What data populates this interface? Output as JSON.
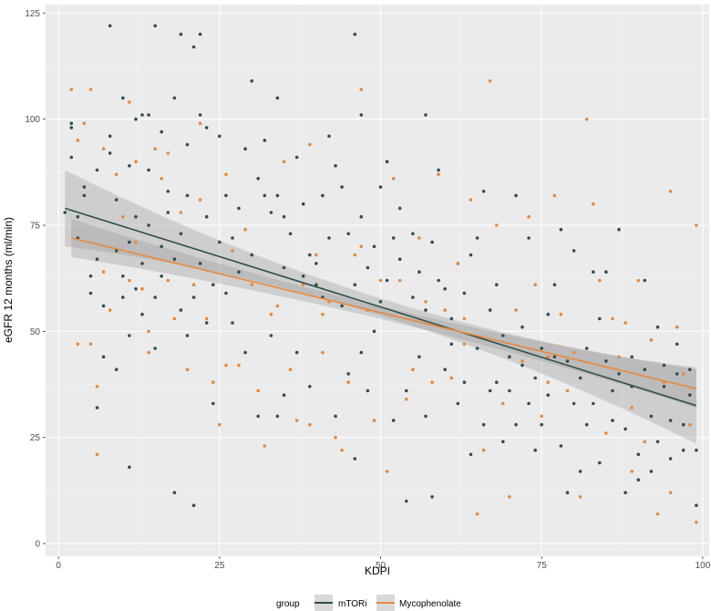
{
  "chart_data": {
    "type": "scatter",
    "xlabel": "KDPI",
    "ylabel": "eGFR 12 months (ml/min)",
    "xlim": [
      -2,
      101
    ],
    "ylim": [
      -3,
      127
    ],
    "x_ticks": [
      0,
      25,
      50,
      75,
      100
    ],
    "y_ticks": [
      0,
      25,
      50,
      75,
      100,
      125
    ],
    "grid": true,
    "legend": {
      "title": "group",
      "position": "bottom"
    },
    "colors": {
      "mTORi": "#2f4f4f",
      "Mycophenolate": "#e8883a",
      "band": "#999999",
      "panel": "#ebebeb"
    },
    "series": [
      {
        "name": "mTORi",
        "trend": {
          "x": [
            1,
            99
          ],
          "y": [
            79,
            32.5
          ],
          "ci_halfwidth_ends": 9,
          "ci_halfwidth_mid": 2
        },
        "points": [
          [
            1,
            78
          ],
          [
            2,
            91
          ],
          [
            2,
            98
          ],
          [
            2,
            99
          ],
          [
            3,
            72
          ],
          [
            3,
            77
          ],
          [
            4,
            82
          ],
          [
            4,
            84
          ],
          [
            5,
            63
          ],
          [
            5,
            59
          ],
          [
            6,
            88
          ],
          [
            6,
            32
          ],
          [
            6,
            67
          ],
          [
            7,
            44
          ],
          [
            7,
            56
          ],
          [
            8,
            122
          ],
          [
            8,
            96
          ],
          [
            8,
            92
          ],
          [
            9,
            81
          ],
          [
            9,
            69
          ],
          [
            9,
            41
          ],
          [
            10,
            63
          ],
          [
            10,
            105
          ],
          [
            10,
            58
          ],
          [
            11,
            89
          ],
          [
            11,
            71
          ],
          [
            11,
            49
          ],
          [
            11,
            18
          ],
          [
            12,
            100
          ],
          [
            12,
            77
          ],
          [
            12,
            60
          ],
          [
            13,
            101
          ],
          [
            13,
            66
          ],
          [
            13,
            54
          ],
          [
            14,
            88
          ],
          [
            14,
            75
          ],
          [
            14,
            101
          ],
          [
            15,
            58
          ],
          [
            15,
            122
          ],
          [
            15,
            46
          ],
          [
            16,
            97
          ],
          [
            16,
            70
          ],
          [
            16,
            63
          ],
          [
            17,
            83
          ],
          [
            17,
            78
          ],
          [
            18,
            105
          ],
          [
            18,
            12
          ],
          [
            18,
            67
          ],
          [
            19,
            120
          ],
          [
            19,
            55
          ],
          [
            19,
            73
          ],
          [
            20,
            94
          ],
          [
            20,
            49
          ],
          [
            20,
            82
          ],
          [
            21,
            117
          ],
          [
            21,
            9
          ],
          [
            21,
            58
          ],
          [
            22,
            101
          ],
          [
            22,
            66
          ],
          [
            22,
            120
          ],
          [
            23,
            98
          ],
          [
            23,
            77
          ],
          [
            23,
            52
          ],
          [
            24,
            61
          ],
          [
            24,
            33
          ],
          [
            25,
            96
          ],
          [
            25,
            71
          ],
          [
            26,
            82
          ],
          [
            26,
            59
          ],
          [
            27,
            72
          ],
          [
            27,
            52
          ],
          [
            28,
            79
          ],
          [
            28,
            64
          ],
          [
            29,
            93
          ],
          [
            29,
            45
          ],
          [
            30,
            109
          ],
          [
            30,
            68
          ],
          [
            31,
            86
          ],
          [
            31,
            30
          ],
          [
            32,
            95
          ],
          [
            32,
            82
          ],
          [
            33,
            78
          ],
          [
            33,
            49
          ],
          [
            34,
            105
          ],
          [
            34,
            82
          ],
          [
            34,
            30
          ],
          [
            35,
            77
          ],
          [
            35,
            65
          ],
          [
            35,
            35
          ],
          [
            36,
            73
          ],
          [
            37,
            91
          ],
          [
            37,
            45
          ],
          [
            38,
            80
          ],
          [
            38,
            63
          ],
          [
            39,
            68
          ],
          [
            39,
            37
          ],
          [
            40,
            66
          ],
          [
            40,
            61
          ],
          [
            41,
            82
          ],
          [
            41,
            58
          ],
          [
            42,
            96
          ],
          [
            42,
            72
          ],
          [
            43,
            89
          ],
          [
            43,
            30
          ],
          [
            44,
            84
          ],
          [
            44,
            56
          ],
          [
            45,
            73
          ],
          [
            45,
            40
          ],
          [
            46,
            120
          ],
          [
            46,
            61
          ],
          [
            46,
            20
          ],
          [
            47,
            77
          ],
          [
            47,
            101
          ],
          [
            47,
            45
          ],
          [
            48,
            65
          ],
          [
            48,
            36
          ],
          [
            49,
            70
          ],
          [
            49,
            50
          ],
          [
            50,
            84
          ],
          [
            50,
            57
          ],
          [
            51,
            90
          ],
          [
            51,
            62
          ],
          [
            52,
            72
          ],
          [
            52,
            29
          ],
          [
            53,
            79
          ],
          [
            53,
            67
          ],
          [
            54,
            10
          ],
          [
            54,
            36
          ],
          [
            55,
            73
          ],
          [
            55,
            58
          ],
          [
            56,
            64
          ],
          [
            56,
            44
          ],
          [
            57,
            101
          ],
          [
            57,
            55
          ],
          [
            57,
            30
          ],
          [
            58,
            71
          ],
          [
            58,
            11
          ],
          [
            59,
            62
          ],
          [
            59,
            88
          ],
          [
            60,
            60
          ],
          [
            60,
            41
          ],
          [
            61,
            47
          ],
          [
            61,
            53
          ],
          [
            62,
            33
          ],
          [
            62,
            66
          ],
          [
            63,
            59
          ],
          [
            63,
            38
          ],
          [
            64,
            68
          ],
          [
            64,
            21
          ],
          [
            65,
            72
          ],
          [
            65,
            46
          ],
          [
            66,
            83
          ],
          [
            66,
            28
          ],
          [
            67,
            36
          ],
          [
            67,
            55
          ],
          [
            68,
            61
          ],
          [
            68,
            38
          ],
          [
            69,
            49
          ],
          [
            69,
            24
          ],
          [
            70,
            44
          ],
          [
            70,
            36
          ],
          [
            71,
            82
          ],
          [
            71,
            28
          ],
          [
            72,
            51
          ],
          [
            72,
            42
          ],
          [
            73,
            72
          ],
          [
            73,
            33
          ],
          [
            74,
            39
          ],
          [
            74,
            22
          ],
          [
            75,
            46
          ],
          [
            75,
            28
          ],
          [
            76,
            54
          ],
          [
            76,
            35
          ],
          [
            77,
            61
          ],
          [
            77,
            44
          ],
          [
            78,
            74
          ],
          [
            78,
            23
          ],
          [
            79,
            43
          ],
          [
            79,
            12
          ],
          [
            80,
            69
          ],
          [
            80,
            33
          ],
          [
            81,
            17
          ],
          [
            81,
            39
          ],
          [
            82,
            46
          ],
          [
            82,
            28
          ],
          [
            83,
            64
          ],
          [
            83,
            33
          ],
          [
            84,
            53
          ],
          [
            84,
            19
          ],
          [
            85,
            43
          ],
          [
            85,
            64
          ],
          [
            86,
            29
          ],
          [
            86,
            36
          ],
          [
            87,
            74
          ],
          [
            87,
            40
          ],
          [
            88,
            27
          ],
          [
            88,
            12
          ],
          [
            89,
            44
          ],
          [
            89,
            37
          ],
          [
            90,
            21
          ],
          [
            90,
            15
          ],
          [
            91,
            41
          ],
          [
            91,
            62
          ],
          [
            92,
            30
          ],
          [
            92,
            17
          ],
          [
            93,
            51
          ],
          [
            93,
            24
          ],
          [
            94,
            42
          ],
          [
            94,
            37
          ],
          [
            95,
            20
          ],
          [
            95,
            29
          ],
          [
            96,
            40
          ],
          [
            96,
            47
          ],
          [
            97,
            22
          ],
          [
            97,
            28
          ],
          [
            98,
            35
          ],
          [
            98,
            41
          ],
          [
            99,
            22
          ],
          [
            99,
            9
          ]
        ]
      },
      {
        "name": "Mycophenolate",
        "trend": {
          "x": [
            2,
            99
          ],
          "y": [
            72,
            36.5
          ],
          "ci_halfwidth_ends": 4.5,
          "ci_halfwidth_mid": 1.5
        },
        "points": [
          [
            2,
            107
          ],
          [
            3,
            95
          ],
          [
            3,
            47
          ],
          [
            4,
            99
          ],
          [
            5,
            107
          ],
          [
            5,
            47
          ],
          [
            6,
            21
          ],
          [
            6,
            37
          ],
          [
            7,
            93
          ],
          [
            8,
            55
          ],
          [
            9,
            87
          ],
          [
            10,
            77
          ],
          [
            11,
            104
          ],
          [
            11,
            62
          ],
          [
            12,
            71
          ],
          [
            13,
            60
          ],
          [
            14,
            50
          ],
          [
            14,
            45
          ],
          [
            15,
            93
          ],
          [
            16,
            86
          ],
          [
            17,
            62
          ],
          [
            17,
            92
          ],
          [
            18,
            53
          ],
          [
            19,
            78
          ],
          [
            20,
            41
          ],
          [
            21,
            61
          ],
          [
            22,
            99
          ],
          [
            22,
            81
          ],
          [
            23,
            53
          ],
          [
            24,
            38
          ],
          [
            25,
            28
          ],
          [
            26,
            87
          ],
          [
            26,
            42
          ],
          [
            27,
            69
          ],
          [
            28,
            42
          ],
          [
            29,
            74
          ],
          [
            30,
            61
          ],
          [
            31,
            36
          ],
          [
            32,
            23
          ],
          [
            33,
            54
          ],
          [
            34,
            56
          ],
          [
            35,
            90
          ],
          [
            36,
            41
          ],
          [
            37,
            29
          ],
          [
            38,
            61
          ],
          [
            39,
            94
          ],
          [
            39,
            28
          ],
          [
            40,
            68
          ],
          [
            41,
            45
          ],
          [
            42,
            57
          ],
          [
            43,
            25
          ],
          [
            44,
            22
          ],
          [
            45,
            38
          ],
          [
            46,
            68
          ],
          [
            47,
            107
          ],
          [
            47,
            70
          ],
          [
            48,
            55
          ],
          [
            49,
            29
          ],
          [
            50,
            62
          ],
          [
            51,
            17
          ],
          [
            52,
            86
          ],
          [
            53,
            62
          ],
          [
            54,
            34
          ],
          [
            55,
            41
          ],
          [
            56,
            72
          ],
          [
            57,
            57
          ],
          [
            58,
            38
          ],
          [
            59,
            87
          ],
          [
            60,
            55
          ],
          [
            61,
            39
          ],
          [
            62,
            66
          ],
          [
            63,
            47
          ],
          [
            64,
            81
          ],
          [
            65,
            7
          ],
          [
            66,
            22
          ],
          [
            67,
            109
          ],
          [
            68,
            75
          ],
          [
            69,
            33
          ],
          [
            70,
            11
          ],
          [
            71,
            55
          ],
          [
            72,
            43
          ],
          [
            73,
            77
          ],
          [
            74,
            61
          ],
          [
            75,
            30
          ],
          [
            76,
            44
          ],
          [
            77,
            82
          ],
          [
            78,
            54
          ],
          [
            79,
            36
          ],
          [
            80,
            45
          ],
          [
            81,
            11
          ],
          [
            82,
            100
          ],
          [
            83,
            80
          ],
          [
            84,
            62
          ],
          [
            85,
            26
          ],
          [
            86,
            53
          ],
          [
            87,
            44
          ],
          [
            88,
            52
          ],
          [
            89,
            32
          ],
          [
            90,
            62
          ],
          [
            91,
            24
          ],
          [
            92,
            48
          ],
          [
            93,
            7
          ],
          [
            94,
            38
          ],
          [
            95,
            83
          ],
          [
            96,
            51
          ],
          [
            97,
            40
          ],
          [
            98,
            28
          ],
          [
            99,
            5
          ],
          [
            99,
            75
          ],
          [
            95,
            12
          ],
          [
            89,
            17
          ],
          [
            76,
            38
          ],
          [
            63,
            53
          ],
          [
            41,
            54
          ],
          [
            12,
            90
          ],
          [
            7,
            64
          ]
        ]
      }
    ]
  }
}
